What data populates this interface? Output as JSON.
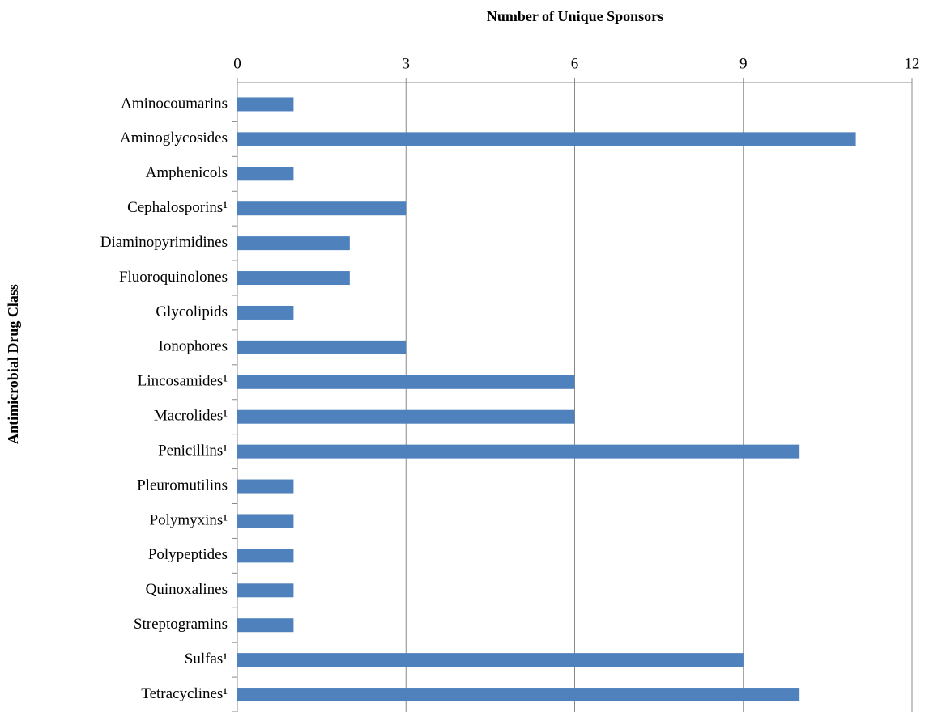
{
  "chart_data": {
    "type": "barh",
    "title": "Number of Unique Sponsors",
    "y_label": "Antimicrobial Drug Class",
    "categories": [
      "Aminocoumarins",
      "Aminoglycosides",
      "Amphenicols",
      "Cephalosporins¹",
      "Diaminopyrimidines",
      "Fluoroquinolones",
      "Glycolipids",
      "Ionophores",
      "Lincosamides¹",
      "Macrolides¹",
      "Penicillins¹",
      "Pleuromutilins",
      "Polymyxins¹",
      "Polypeptides",
      "Quinoxalines",
      "Streptogramins",
      "Sulfas¹",
      "Tetracyclines¹"
    ],
    "values": [
      1,
      11,
      1,
      3,
      2,
      2,
      1,
      3,
      6,
      6,
      10,
      1,
      1,
      1,
      1,
      1,
      9,
      10
    ],
    "color": "#4f81bd",
    "xlim": [
      0,
      12
    ],
    "xticks": [
      0,
      3,
      6,
      9,
      12
    ],
    "grid": true
  }
}
